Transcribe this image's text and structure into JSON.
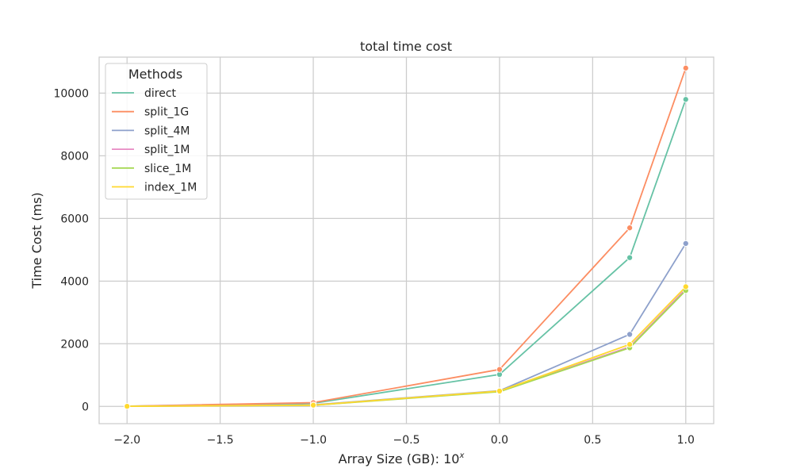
{
  "chart_data": {
    "type": "line",
    "title": "total time cost",
    "xlabel": "Array Size (GB): 10",
    "xlabel_superscript": "x",
    "ylabel": "Time Cost (ms)",
    "xlim": [
      -2.15,
      1.15
    ],
    "ylim": [
      -550,
      11150
    ],
    "x_ticks": [
      -2.0,
      -1.5,
      -1.0,
      -0.5,
      0.0,
      0.5,
      1.0
    ],
    "x_tick_labels": [
      "−2.0",
      "−1.5",
      "−1.0",
      "−0.5",
      "0.0",
      "0.5",
      "1.0"
    ],
    "y_ticks": [
      0,
      2000,
      4000,
      6000,
      8000,
      10000
    ],
    "y_tick_labels": [
      "0",
      "2000",
      "4000",
      "6000",
      "8000",
      "10000"
    ],
    "grid": true,
    "legend": {
      "title": "Methods",
      "position": "top-left"
    },
    "x": [
      -2.0,
      -1.0,
      0.0,
      0.699,
      1.0
    ],
    "series": [
      {
        "name": "direct",
        "color": "#66c2a5",
        "values": [
          5,
          100,
          1020,
          4750,
          9800
        ]
      },
      {
        "name": "split_1G",
        "color": "#fc8d62",
        "values": [
          8,
          120,
          1180,
          5700,
          10800
        ]
      },
      {
        "name": "split_4M",
        "color": "#8da0cb",
        "values": [
          5,
          50,
          500,
          2300,
          5200
        ]
      },
      {
        "name": "split_1M",
        "color": "#e78ac3",
        "values": [
          4,
          40,
          480,
          1900,
          3750
        ]
      },
      {
        "name": "slice_1M",
        "color": "#a6d854",
        "values": [
          4,
          35,
          470,
          1870,
          3700
        ]
      },
      {
        "name": "index_1M",
        "color": "#ffd92f",
        "values": [
          4,
          40,
          490,
          1980,
          3820
        ]
      }
    ]
  }
}
